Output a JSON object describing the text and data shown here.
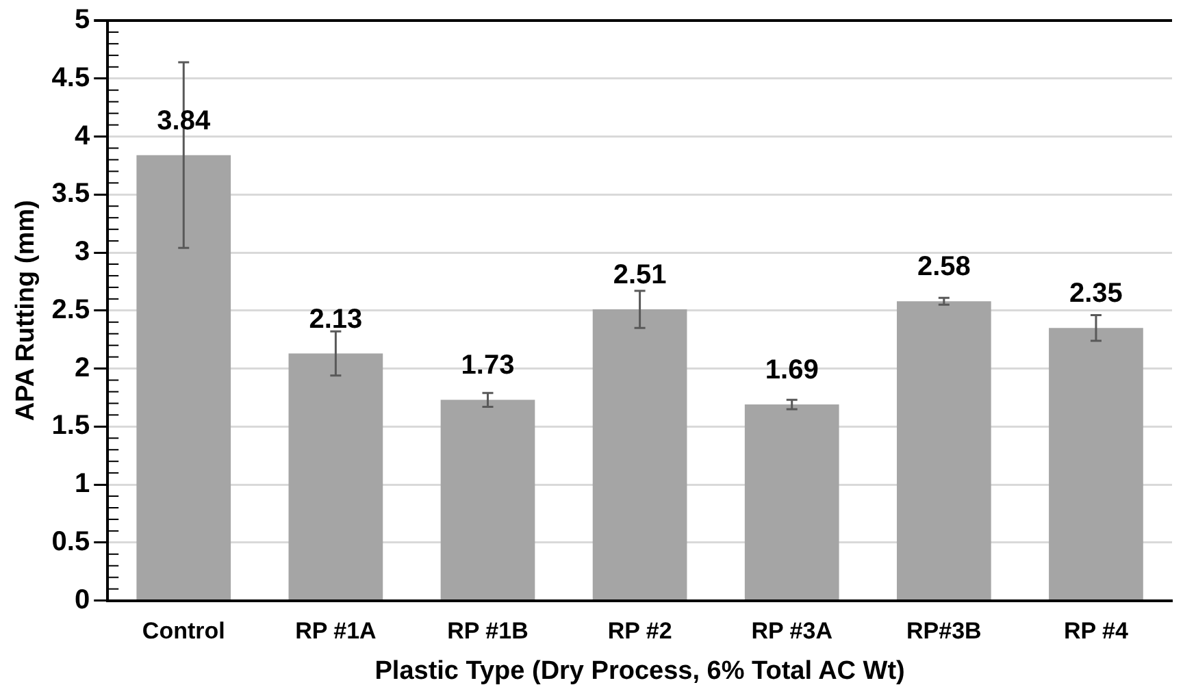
{
  "chart_data": {
    "type": "bar",
    "xlabel": "Plastic Type (Dry Process, 6% Total AC Wt)",
    "ylabel": "APA Rutting (mm)",
    "categories": [
      "Control",
      "RP #1A",
      "RP #1B",
      "RP #2",
      "RP #3A",
      "RP#3B",
      "RP #4"
    ],
    "values": [
      3.84,
      2.13,
      1.73,
      2.51,
      1.69,
      2.58,
      2.35
    ],
    "errors": [
      0.8,
      0.19,
      0.06,
      0.16,
      0.04,
      0.03,
      0.11
    ],
    "color": "#a5a5a5",
    "ylim": [
      0,
      5
    ],
    "yticks": [
      0,
      0.5,
      1,
      1.5,
      2,
      2.5,
      3,
      3.5,
      4,
      4.5,
      5
    ],
    "grid": "y",
    "data_labels": true
  }
}
